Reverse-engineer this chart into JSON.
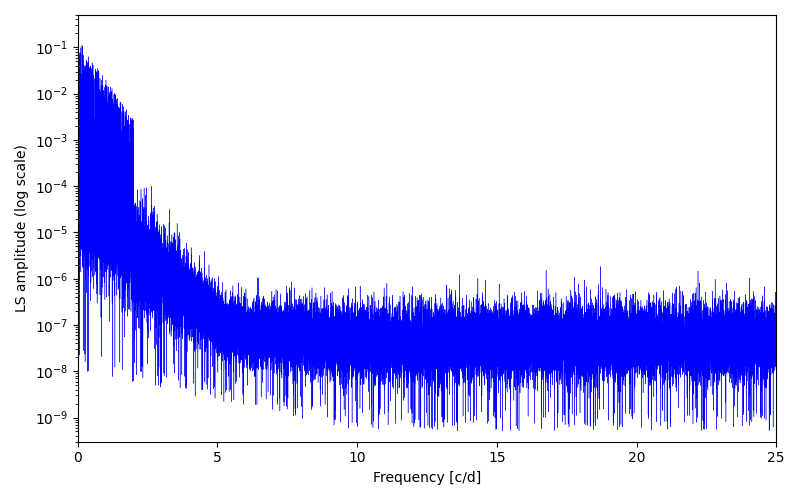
{
  "xlabel": "Frequency [c/d]",
  "ylabel": "LS amplitude (log scale)",
  "xlim": [
    0,
    25
  ],
  "ylim": [
    3e-10,
    0.5
  ],
  "xticks": [
    0,
    5,
    10,
    15,
    20,
    25
  ],
  "line_color": "#0000ff",
  "line_width": 0.3,
  "figsize": [
    8.0,
    5.0
  ],
  "dpi": 100,
  "seed": 12345,
  "n_points": 25000,
  "freq_max": 25.0
}
